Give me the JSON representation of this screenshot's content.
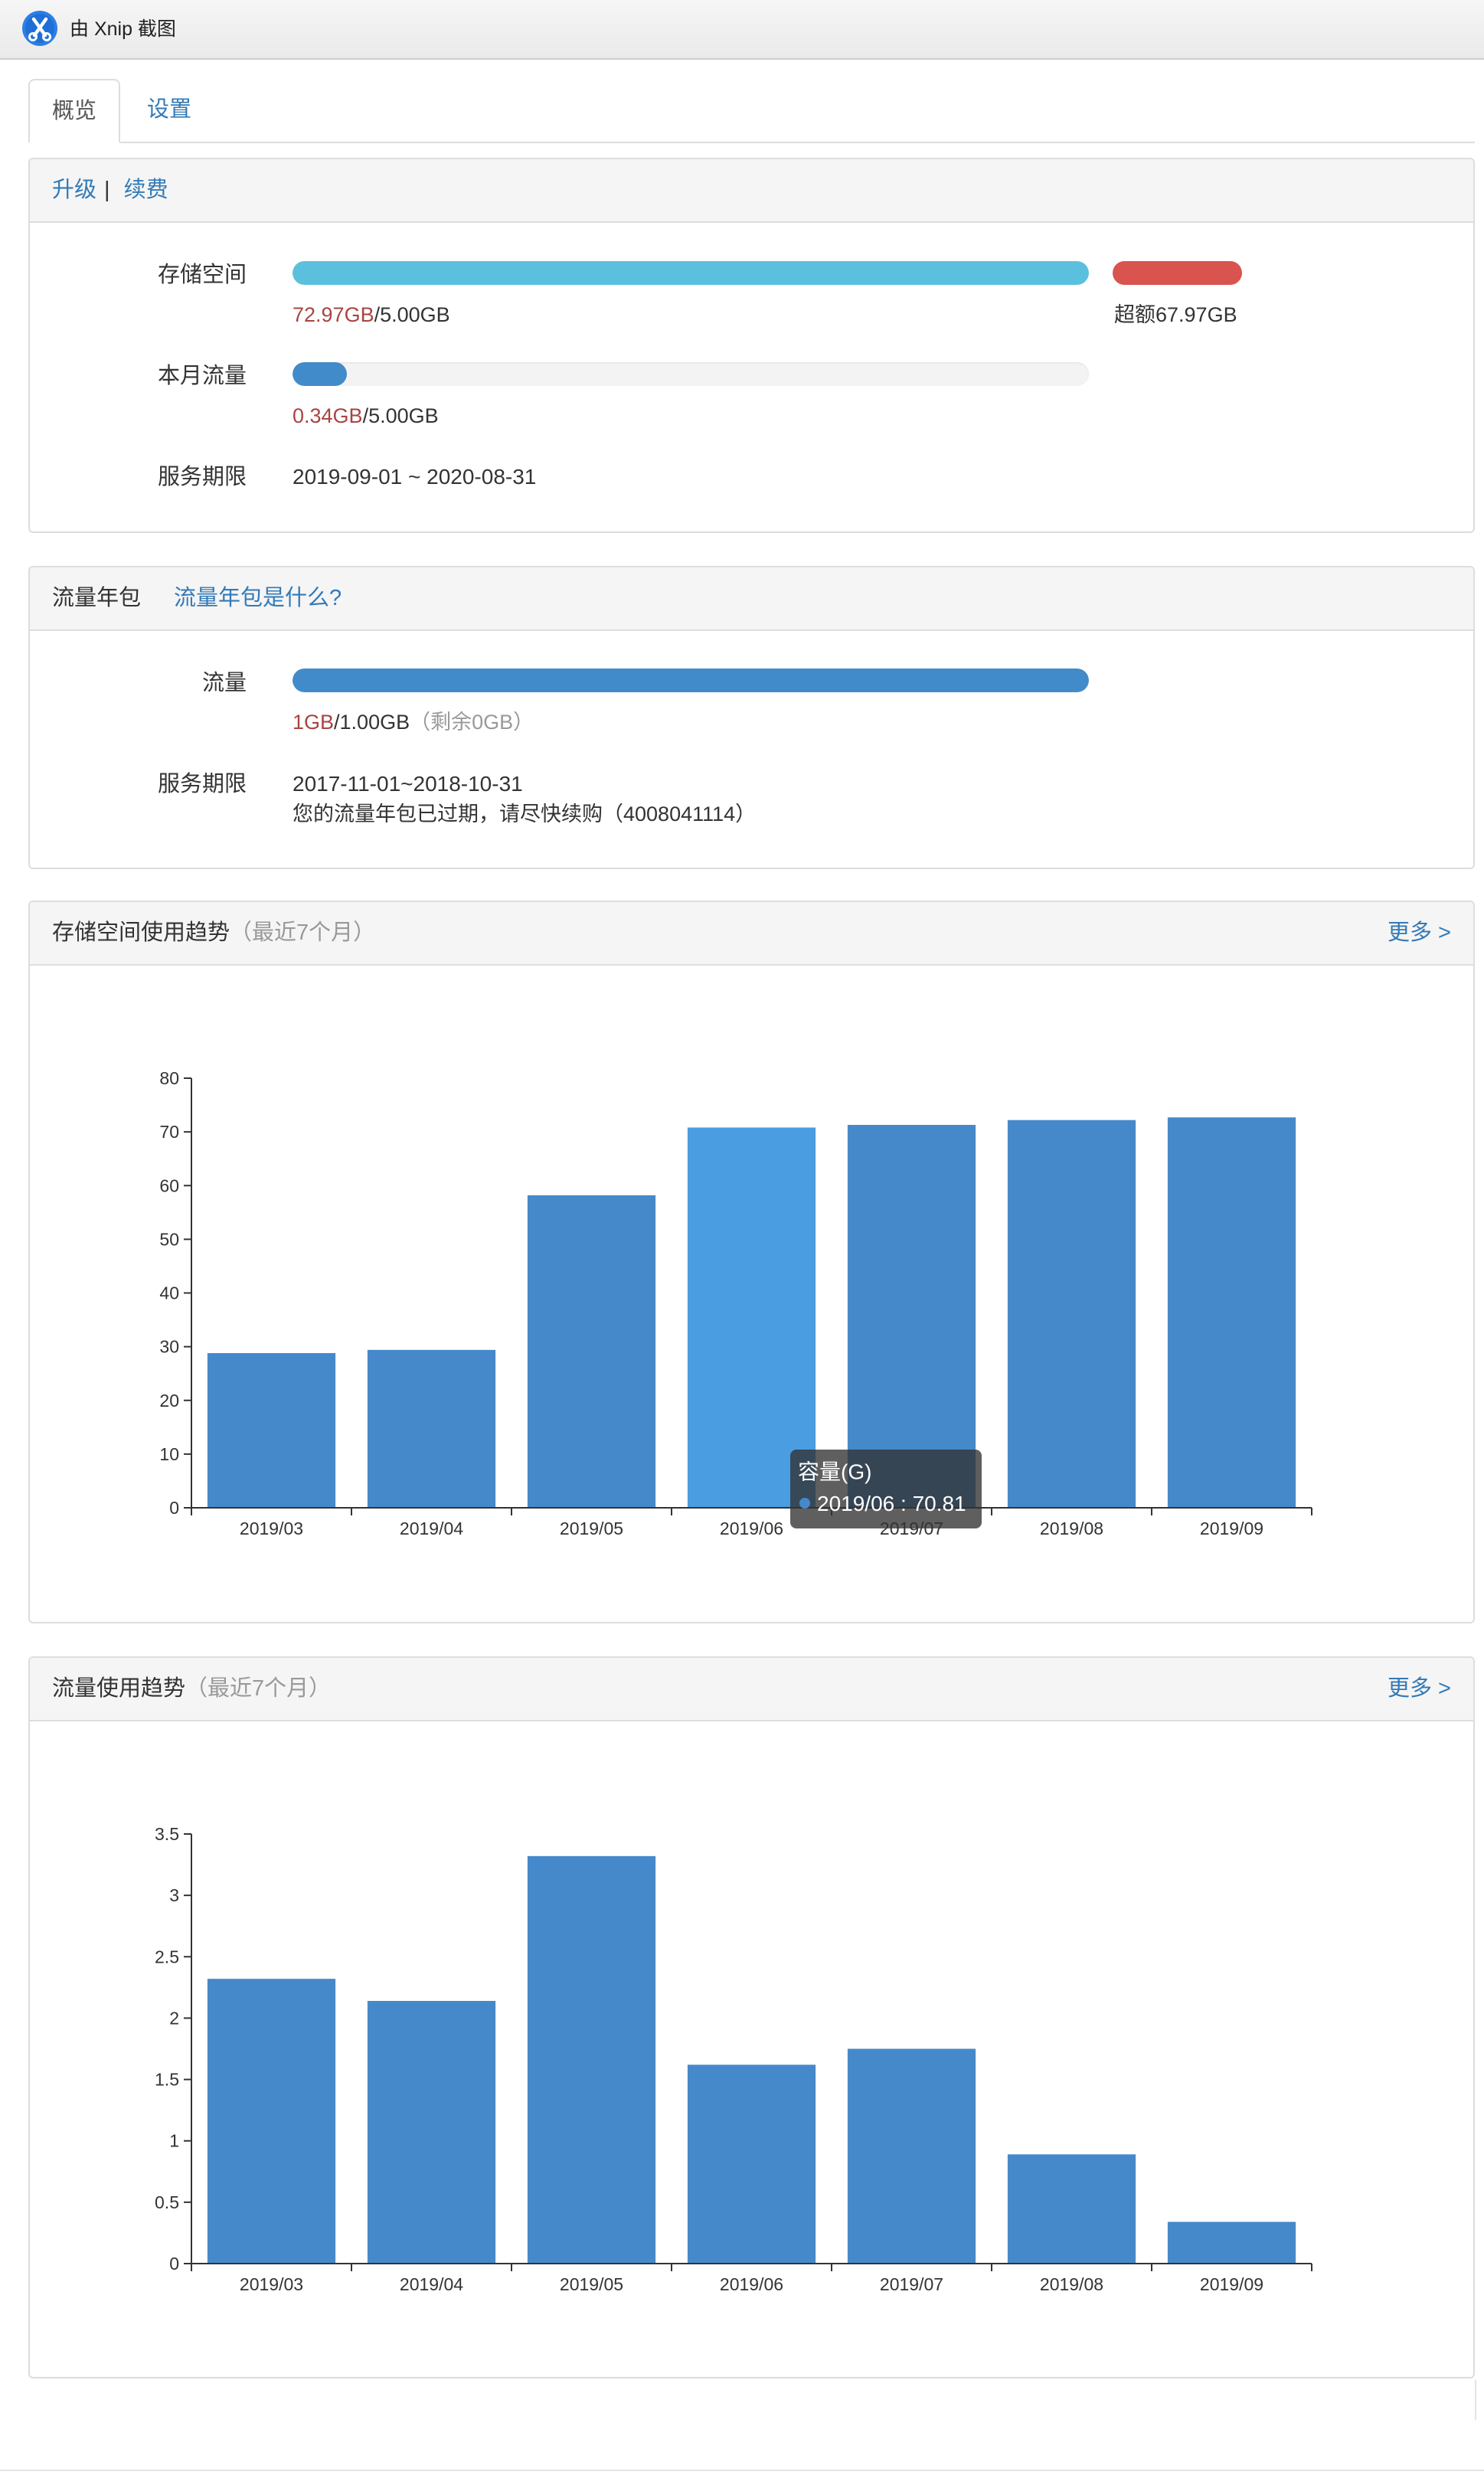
{
  "window": {
    "title": "由 Xnip 截图",
    "logo_icon": "xnip-logo-icon"
  },
  "tabs": [
    {
      "label": "概览",
      "active": true
    },
    {
      "label": "设置",
      "active": false
    }
  ],
  "plan_panel": {
    "upgrade_link": "升级",
    "separator": "|",
    "renew_link": "续费",
    "storage": {
      "label": "存储空间",
      "used": "72.97GB",
      "quota": "/5.00GB",
      "overage": "超额67.97GB",
      "fill_fraction": 1.0
    },
    "traffic": {
      "label": "本月流量",
      "used": "0.34GB",
      "quota": "/5.00GB",
      "fill_fraction": 0.068
    },
    "service_period": {
      "label": "服务期限",
      "value": "2019-09-01 ~ 2020-08-31"
    }
  },
  "annual_pack_panel": {
    "title": "流量年包",
    "help_link": "流量年包是什么?",
    "traffic": {
      "label": "流量",
      "used": "1GB",
      "quota": "/1.00GB",
      "remaining": "（剩余0GB）",
      "fill_fraction": 1.0
    },
    "service_period": {
      "label": "服务期限",
      "value": "2017-11-01~2018-10-31",
      "expired_notice": "您的流量年包已过期，请尽快续购（4008041114）"
    }
  },
  "storage_trend_panel": {
    "more_link": "更多 >"
  },
  "traffic_trend_panel": {
    "more_link": "更多 >"
  },
  "chart_data": [
    {
      "type": "bar",
      "title": "存储空间使用趋势",
      "subtitle": "（最近7个月）",
      "categories": [
        "2019/03",
        "2019/04",
        "2019/05",
        "2019/06",
        "2019/07",
        "2019/08",
        "2019/09"
      ],
      "series": [
        {
          "name": "容量(G)",
          "values": [
            28.8,
            29.4,
            58.2,
            70.81,
            71.3,
            72.2,
            72.7
          ]
        }
      ],
      "ylim": [
        0,
        80
      ],
      "yticks": [
        0,
        10,
        20,
        30,
        40,
        50,
        60,
        70,
        80
      ],
      "grid": false,
      "tooltip": {
        "category": "2019/06",
        "separator": " : ",
        "value": "70.81"
      }
    },
    {
      "type": "bar",
      "title": "流量使用趋势",
      "subtitle": "（最近7个月）",
      "categories": [
        "2019/03",
        "2019/04",
        "2019/05",
        "2019/06",
        "2019/07",
        "2019/08",
        "2019/09"
      ],
      "series": [
        {
          "values": [
            2.32,
            2.14,
            3.32,
            1.62,
            1.75,
            0.89,
            0.34
          ]
        }
      ],
      "ylim": [
        0,
        3.5
      ],
      "yticks": [
        0,
        0.5,
        1,
        1.5,
        2,
        2.5,
        3,
        3.5
      ],
      "grid": false
    }
  ],
  "colors": {
    "link": "#337ab7",
    "danger_text": "#a94442",
    "muted_text": "#999999",
    "border": "#dddddd",
    "header_bg": "#f5f5f5",
    "track": "#f3f3f3",
    "storage_bar": "#5bc0de",
    "overage_bar": "#d9534f",
    "traffic_bar": "#428bca",
    "chart_bar": "#4589cb",
    "chart_bar_highlight": "#4a9de0",
    "axis": "#333333",
    "tooltip_bg": "rgba(50,50,50,0.78)"
  }
}
